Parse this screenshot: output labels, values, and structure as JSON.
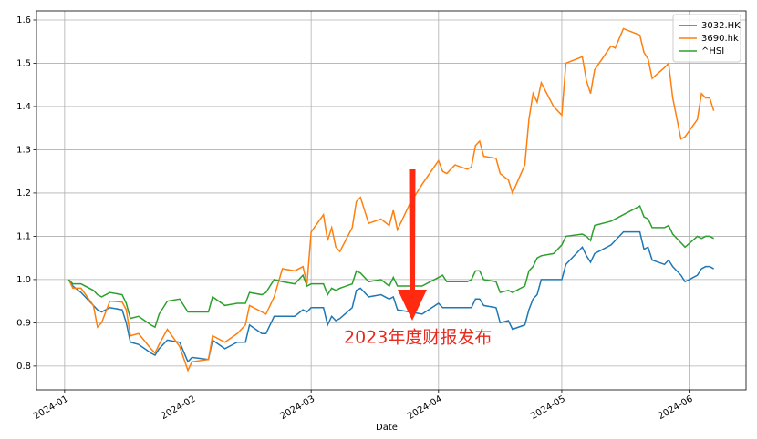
{
  "chart_data": {
    "type": "line",
    "xlabel": "Date",
    "annotation": "2023年度财报发布",
    "x": [
      19724,
      19725,
      19727,
      19730,
      19731,
      19732,
      19734,
      19737,
      19738,
      19739,
      19741,
      19744,
      19745,
      19746,
      19748,
      19751,
      19753,
      19754,
      19758,
      19759,
      19762,
      19765,
      19767,
      19768,
      19771,
      19772,
      19774,
      19776,
      19779,
      19781,
      19782,
      19783,
      19786,
      19787,
      19788,
      19789,
      19790,
      19793,
      19794,
      19795,
      19797,
      19800,
      19802,
      19803,
      19804,
      19807,
      19810,
      19814,
      19815,
      19816,
      19818,
      19821,
      19822,
      19823,
      19824,
      19825,
      19828,
      19829,
      19831,
      19832,
      19835,
      19836,
      19837,
      19838,
      19839,
      19842,
      19844,
      19845,
      19849,
      19850,
      19851,
      19852,
      19856,
      19857,
      19859,
      19863,
      19864,
      19865,
      19866,
      19869,
      19870,
      19871,
      19873,
      19874,
      19877,
      19878,
      19879,
      19880,
      19881
    ],
    "series": [
      {
        "name": "3032.HK",
        "color": "#1f77b4",
        "values": [
          1.0,
          0.985,
          0.97,
          0.94,
          0.93,
          0.925,
          0.935,
          0.93,
          0.9,
          0.855,
          0.85,
          0.83,
          0.825,
          0.84,
          0.86,
          0.855,
          0.81,
          0.82,
          0.815,
          0.86,
          0.84,
          0.855,
          0.855,
          0.895,
          0.875,
          0.875,
          0.915,
          0.915,
          0.915,
          0.93,
          0.925,
          0.935,
          0.935,
          0.895,
          0.915,
          0.905,
          0.91,
          0.935,
          0.975,
          0.98,
          0.96,
          0.965,
          0.955,
          0.96,
          0.93,
          0.925,
          0.92,
          0.945,
          0.935,
          0.935,
          0.935,
          0.935,
          0.935,
          0.955,
          0.955,
          0.94,
          0.935,
          0.9,
          0.905,
          0.885,
          0.895,
          0.93,
          0.955,
          0.965,
          1.0,
          1.0,
          1.0,
          1.035,
          1.075,
          1.055,
          1.04,
          1.06,
          1.08,
          1.09,
          1.11,
          1.11,
          1.07,
          1.075,
          1.045,
          1.035,
          1.045,
          1.03,
          1.01,
          0.995,
          1.01,
          1.025,
          1.03,
          1.03,
          1.025
        ]
      },
      {
        "name": "3690.hk",
        "color": "#ff7f0e",
        "values": [
          1.0,
          0.98,
          0.98,
          0.94,
          0.89,
          0.9,
          0.95,
          0.948,
          0.93,
          0.87,
          0.875,
          0.84,
          0.83,
          0.85,
          0.885,
          0.845,
          0.79,
          0.81,
          0.815,
          0.87,
          0.855,
          0.875,
          0.895,
          0.94,
          0.925,
          0.92,
          0.96,
          1.025,
          1.02,
          1.03,
          0.99,
          1.11,
          1.15,
          1.09,
          1.12,
          1.075,
          1.065,
          1.12,
          1.18,
          1.19,
          1.13,
          1.14,
          1.125,
          1.16,
          1.115,
          1.175,
          1.22,
          1.275,
          1.25,
          1.245,
          1.265,
          1.255,
          1.26,
          1.31,
          1.32,
          1.285,
          1.28,
          1.245,
          1.23,
          1.2,
          1.265,
          1.37,
          1.43,
          1.41,
          1.455,
          1.4,
          1.38,
          1.5,
          1.515,
          1.46,
          1.43,
          1.485,
          1.54,
          1.535,
          1.58,
          1.565,
          1.525,
          1.51,
          1.465,
          1.49,
          1.5,
          1.42,
          1.325,
          1.33,
          1.37,
          1.43,
          1.42,
          1.42,
          1.39
        ]
      },
      {
        "name": "^HSI",
        "color": "#2ca02c",
        "values": [
          1.0,
          0.99,
          0.99,
          0.975,
          0.965,
          0.96,
          0.97,
          0.965,
          0.945,
          0.91,
          0.915,
          0.895,
          0.89,
          0.92,
          0.95,
          0.955,
          0.925,
          0.925,
          0.925,
          0.96,
          0.94,
          0.945,
          0.945,
          0.97,
          0.965,
          0.97,
          1.0,
          0.995,
          0.99,
          1.01,
          0.985,
          0.99,
          0.99,
          0.965,
          0.98,
          0.975,
          0.98,
          0.99,
          1.02,
          1.015,
          0.995,
          1.0,
          0.985,
          1.005,
          0.985,
          0.985,
          0.985,
          1.005,
          1.01,
          0.995,
          0.995,
          0.995,
          1.0,
          1.02,
          1.02,
          1.0,
          0.995,
          0.97,
          0.975,
          0.97,
          0.985,
          1.02,
          1.03,
          1.05,
          1.055,
          1.06,
          1.08,
          1.1,
          1.105,
          1.1,
          1.09,
          1.125,
          1.135,
          1.14,
          1.15,
          1.17,
          1.145,
          1.14,
          1.12,
          1.12,
          1.125,
          1.105,
          1.085,
          1.075,
          1.1,
          1.095,
          1.1,
          1.1,
          1.095
        ]
      }
    ],
    "xlim": [
      19716.15,
      19888.85
    ],
    "xticks": [
      {
        "value": 19723,
        "label": "2024-01"
      },
      {
        "value": 19754,
        "label": "2024-02"
      },
      {
        "value": 19783,
        "label": "2024-03"
      },
      {
        "value": 19814,
        "label": "2024-04"
      },
      {
        "value": 19844,
        "label": "2024-05"
      },
      {
        "value": 19875,
        "label": "2024-06"
      }
    ],
    "ylim": [
      0.745,
      1.621
    ],
    "yticks": [
      0.8,
      0.9,
      {
        "value": 1,
        "label": "1.0"
      },
      1.1,
      1.2,
      1.3,
      1.4,
      1.5,
      1.6
    ],
    "grid": true,
    "legend": "upper right"
  }
}
